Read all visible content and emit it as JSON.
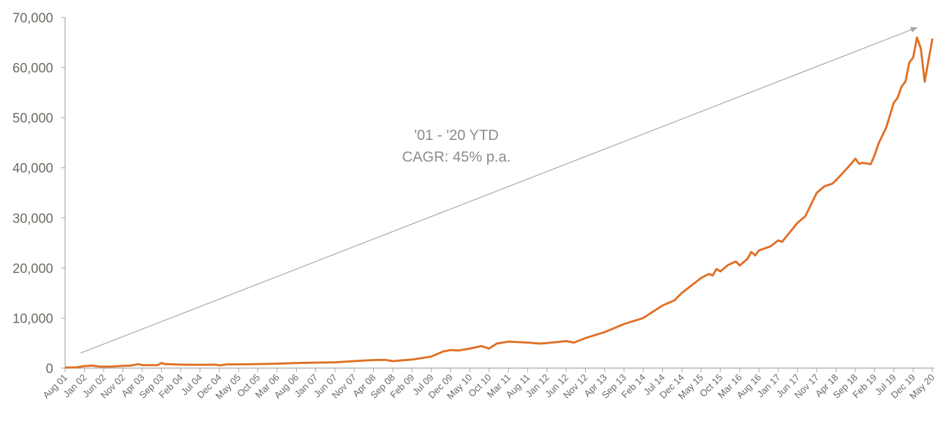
{
  "chart_data": {
    "type": "line",
    "title": "",
    "xlabel": "",
    "ylabel": "",
    "ylim": [
      0,
      70000
    ],
    "yticks": [
      0,
      10000,
      20000,
      30000,
      40000,
      50000,
      60000,
      70000
    ],
    "ytick_labels": [
      "0",
      "10,000",
      "20,000",
      "30,000",
      "40,000",
      "50,000",
      "60,000",
      "70,000"
    ],
    "xlim": [
      "2001-08",
      "2020-05"
    ],
    "xtick_labels": [
      "Aug 01",
      "Jan 02",
      "Jun 02",
      "Nov 02",
      "Apr 03",
      "Sep 03",
      "Feb 04",
      "Jul 04",
      "Dec 04",
      "May 05",
      "Oct 05",
      "Mar 06",
      "Aug 06",
      "Jan 07",
      "Jun 07",
      "Nov 07",
      "Apr 08",
      "Sep 08",
      "Feb 09",
      "Jul 09",
      "Dec 09",
      "May 10",
      "Oct 10",
      "Mar 11",
      "Aug 11",
      "Jan 12",
      "Jun 12",
      "Nov 12",
      "Apr 13",
      "Sep 13",
      "Feb 14",
      "Jul 14",
      "Dec 14",
      "May 15",
      "Oct 15",
      "Mar 16",
      "Aug 16",
      "Jan 17",
      "Jun 17",
      "Nov 17",
      "Apr 18",
      "Sep 18",
      "Feb 19",
      "Jul 19",
      "Dec 19",
      "May 20"
    ],
    "grid": false,
    "legend": "none",
    "colors": {
      "line": "#e07026",
      "axis": "#a6a6a6",
      "annotation": "#a6a6a6",
      "text": "#6b6b63"
    },
    "series": [
      {
        "points": [
          [
            "2001-08",
            100
          ],
          [
            "2001-11",
            150
          ],
          [
            "2002-01",
            400
          ],
          [
            "2002-03",
            500
          ],
          [
            "2002-05",
            300
          ],
          [
            "2002-08",
            300
          ],
          [
            "2002-11",
            450
          ],
          [
            "2003-01",
            500
          ],
          [
            "2003-03",
            800
          ],
          [
            "2003-04",
            600
          ],
          [
            "2003-08",
            600
          ],
          [
            "2003-09",
            1000
          ],
          [
            "2003-10",
            800
          ],
          [
            "2004-02",
            700
          ],
          [
            "2004-07",
            650
          ],
          [
            "2004-11",
            700
          ],
          [
            "2004-12",
            550
          ],
          [
            "2005-02",
            750
          ],
          [
            "2005-05",
            750
          ],
          [
            "2005-10",
            800
          ],
          [
            "2006-03",
            900
          ],
          [
            "2006-08",
            1000
          ],
          [
            "2007-01",
            1100
          ],
          [
            "2007-06",
            1150
          ],
          [
            "2007-11",
            1400
          ],
          [
            "2008-04",
            1600
          ],
          [
            "2008-07",
            1650
          ],
          [
            "2008-09",
            1400
          ],
          [
            "2009-02",
            1700
          ],
          [
            "2009-07",
            2300
          ],
          [
            "2009-10",
            3300
          ],
          [
            "2009-12",
            3600
          ],
          [
            "2010-02",
            3500
          ],
          [
            "2010-05",
            3900
          ],
          [
            "2010-08",
            4400
          ],
          [
            "2010-10",
            3900
          ],
          [
            "2010-12",
            4900
          ],
          [
            "2011-03",
            5300
          ],
          [
            "2011-08",
            5100
          ],
          [
            "2011-11",
            4900
          ],
          [
            "2012-01",
            5000
          ],
          [
            "2012-06",
            5400
          ],
          [
            "2012-08",
            5100
          ],
          [
            "2012-11",
            6000
          ],
          [
            "2013-04",
            7200
          ],
          [
            "2013-09",
            8800
          ],
          [
            "2014-02",
            10000
          ],
          [
            "2014-07",
            12500
          ],
          [
            "2014-10",
            13500
          ],
          [
            "2014-12",
            15000
          ],
          [
            "2015-05",
            18000
          ],
          [
            "2015-07",
            18800
          ],
          [
            "2015-08",
            18500
          ],
          [
            "2015-09",
            19800
          ],
          [
            "2015-10",
            19300
          ],
          [
            "2015-12",
            20600
          ],
          [
            "2016-02",
            21300
          ],
          [
            "2016-03",
            20500
          ],
          [
            "2016-05",
            21800
          ],
          [
            "2016-06",
            23200
          ],
          [
            "2016-07",
            22500
          ],
          [
            "2016-08",
            23500
          ],
          [
            "2016-11",
            24300
          ],
          [
            "2017-01",
            25500
          ],
          [
            "2017-02",
            25200
          ],
          [
            "2017-06",
            29000
          ],
          [
            "2017-08",
            30300
          ],
          [
            "2017-11",
            35000
          ],
          [
            "2018-01",
            36300
          ],
          [
            "2018-03",
            36800
          ],
          [
            "2018-04",
            37500
          ],
          [
            "2018-07",
            40000
          ],
          [
            "2018-09",
            41800
          ],
          [
            "2018-10",
            40800
          ],
          [
            "2018-11",
            41000
          ],
          [
            "2019-01",
            40700
          ],
          [
            "2019-02",
            42500
          ],
          [
            "2019-03",
            44800
          ],
          [
            "2019-05",
            48000
          ],
          [
            "2019-07",
            53000
          ],
          [
            "2019-08",
            54000
          ],
          [
            "2019-09",
            56200
          ],
          [
            "2019-10",
            57200
          ],
          [
            "2019-11",
            61000
          ],
          [
            "2019-12",
            62000
          ],
          [
            "2020-01",
            66000
          ],
          [
            "2020-02",
            63800
          ],
          [
            "2020-03",
            57200
          ],
          [
            "2020-04",
            61500
          ],
          [
            "2020-05",
            65800
          ]
        ]
      }
    ],
    "annotations": [
      {
        "type": "arrow",
        "from": [
          "2001-12",
          3000
        ],
        "to": [
          "2020-01",
          68000
        ]
      },
      {
        "type": "text",
        "lines": [
          "'01 - '20 YTD",
          "CAGR: 45% p.a."
        ]
      }
    ]
  }
}
